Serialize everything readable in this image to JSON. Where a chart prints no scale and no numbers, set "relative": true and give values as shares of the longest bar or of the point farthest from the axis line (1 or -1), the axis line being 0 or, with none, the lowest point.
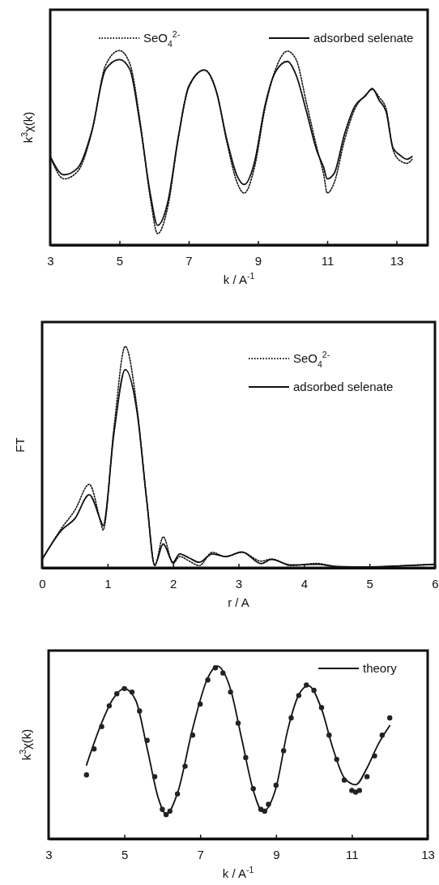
{
  "chart_data": [
    {
      "type": "line",
      "relative": true,
      "xlabel": "k / A$^{-1}$",
      "ylabel": "k$^{3}$χ(k)",
      "xlim": [
        3,
        13.9
      ],
      "xticks": [
        3,
        5,
        7,
        9,
        11,
        13
      ],
      "legend": "top",
      "marker": "none",
      "grid": false,
      "series": [
        {
          "name": "SeO$_{4}$$^{2-}$",
          "color": "#111111",
          "line_style": "dotted",
          "x": [
            3.0,
            3.4,
            3.8,
            4.2,
            4.6,
            5.0,
            5.3,
            5.6,
            5.9,
            6.1,
            6.4,
            6.7,
            7.0,
            7.45,
            7.8,
            8.1,
            8.4,
            8.6,
            8.9,
            9.2,
            9.5,
            9.85,
            10.1,
            10.4,
            10.7,
            10.9,
            11.0,
            11.2,
            11.5,
            11.8,
            12.1,
            12.3,
            12.5,
            12.7,
            12.9,
            13.1,
            13.3,
            13.45
          ],
          "values": [
            0.455,
            0.34,
            0.38,
            0.58,
            0.925,
            1.0,
            0.932,
            0.63,
            0.23,
            0.058,
            0.2,
            0.55,
            0.81,
            0.9,
            0.79,
            0.53,
            0.32,
            0.267,
            0.4,
            0.7,
            0.9,
            0.997,
            0.954,
            0.73,
            0.5,
            0.36,
            0.267,
            0.32,
            0.54,
            0.7,
            0.77,
            0.8,
            0.76,
            0.7,
            0.49,
            0.434,
            0.42,
            0.44
          ]
        },
        {
          "name": "adsorbed selenate",
          "color": "#111111",
          "line_style": "solid",
          "x": [
            3.0,
            3.4,
            3.8,
            4.2,
            4.6,
            5.0,
            5.3,
            5.6,
            5.9,
            6.1,
            6.4,
            6.7,
            7.0,
            7.45,
            7.8,
            8.1,
            8.4,
            8.6,
            8.9,
            9.2,
            9.5,
            9.85,
            10.1,
            10.4,
            10.7,
            10.9,
            11.0,
            11.2,
            11.5,
            11.8,
            12.1,
            12.3,
            12.5,
            12.7,
            12.9,
            13.1,
            13.3,
            13.45
          ],
          "values": [
            0.455,
            0.361,
            0.397,
            0.585,
            0.903,
            0.954,
            0.903,
            0.614,
            0.253,
            0.101,
            0.224,
            0.556,
            0.816,
            0.9,
            0.788,
            0.542,
            0.354,
            0.311,
            0.426,
            0.715,
            0.889,
            0.944,
            0.874,
            0.686,
            0.484,
            0.397,
            0.34,
            0.368,
            0.571,
            0.715,
            0.766,
            0.805,
            0.744,
            0.686,
            0.499,
            0.462,
            0.441,
            0.455
          ]
        }
      ]
    },
    {
      "type": "line",
      "relative": true,
      "xlabel": "r / A",
      "ylabel": "FT",
      "xlim": [
        0,
        6
      ],
      "xticks": [
        0,
        1,
        2,
        3,
        4,
        5,
        6
      ],
      "legend": "top right",
      "marker": "none",
      "grid": false,
      "series": [
        {
          "name": "SeO$_{4}$$^{2-}$",
          "color": "#111111",
          "line_style": "dotted",
          "x": [
            0,
            0.3,
            0.5,
            0.72,
            0.9,
            0.93,
            1.1,
            1.27,
            1.45,
            1.6,
            1.72,
            1.85,
            2.0,
            2.1,
            2.25,
            2.4,
            2.6,
            2.8,
            3.05,
            3.35,
            3.5,
            3.8,
            4.2,
            4.5,
            5.0,
            5.5,
            6.0
          ],
          "values": [
            0.038,
            0.18,
            0.26,
            0.377,
            0.2,
            0.171,
            0.64,
            1.0,
            0.72,
            0.3,
            0.01,
            0.14,
            0.02,
            0.051,
            0.03,
            0.01,
            0.07,
            0.05,
            0.07,
            0.03,
            0.04,
            0.01,
            0.02,
            0.005,
            0.004,
            0.01,
            0.015
          ]
        },
        {
          "name": "adsorbed selenate",
          "color": "#111111",
          "line_style": "solid",
          "x": [
            0,
            0.3,
            0.5,
            0.72,
            0.9,
            0.93,
            1.1,
            1.27,
            1.45,
            1.6,
            1.72,
            1.85,
            2.0,
            2.1,
            2.25,
            2.4,
            2.6,
            2.8,
            3.05,
            3.35,
            3.5,
            3.8,
            4.2,
            4.5,
            5.0,
            5.5,
            6.0
          ],
          "values": [
            0.038,
            0.171,
            0.222,
            0.33,
            0.209,
            0.19,
            0.615,
            0.895,
            0.704,
            0.298,
            0.013,
            0.108,
            0.025,
            0.063,
            0.044,
            0.025,
            0.063,
            0.051,
            0.072,
            0.019,
            0.038,
            0.013,
            0.016,
            0.006,
            0.004,
            0.009,
            0.016
          ]
        }
      ]
    },
    {
      "type": "line",
      "relative": true,
      "xlabel": "k / A$^{-1}$",
      "ylabel": "k$^{3}$χ(k)",
      "xlim": [
        3,
        13
      ],
      "xticks": [
        3,
        5,
        7,
        9,
        11,
        13
      ],
      "legend": "top right",
      "grid": false,
      "series": [
        {
          "type": "scatter",
          "marker": "circle",
          "color": "#222222",
          "x": [
            4.0,
            4.2,
            4.4,
            4.6,
            4.8,
            5.0,
            5.2,
            5.4,
            5.6,
            5.8,
            6.0,
            6.1,
            6.2,
            6.4,
            6.6,
            6.8,
            7.0,
            7.2,
            7.4,
            7.6,
            7.8,
            8.0,
            8.2,
            8.4,
            8.6,
            8.7,
            8.8,
            9.0,
            9.2,
            9.4,
            9.6,
            9.8,
            10.0,
            10.2,
            10.4,
            10.6,
            10.8,
            11.0,
            11.1,
            11.2,
            11.4,
            11.6,
            11.8,
            12.0
          ],
          "values": [
            0.37,
            0.52,
            0.65,
            0.77,
            0.84,
            0.87,
            0.85,
            0.74,
            0.57,
            0.36,
            0.17,
            0.14,
            0.16,
            0.26,
            0.42,
            0.6,
            0.78,
            0.92,
            0.99,
            0.96,
            0.85,
            0.67,
            0.47,
            0.29,
            0.17,
            0.16,
            0.2,
            0.31,
            0.51,
            0.7,
            0.83,
            0.89,
            0.86,
            0.76,
            0.6,
            0.46,
            0.34,
            0.28,
            0.27,
            0.28,
            0.36,
            0.48,
            0.6,
            0.7
          ]
        },
        {
          "name": "theory",
          "type": "line",
          "marker": "none",
          "color": "#111111",
          "line_style": "solid",
          "x": [
            4.0,
            4.4,
            4.7,
            5.0,
            5.3,
            5.6,
            5.9,
            6.1,
            6.4,
            6.8,
            7.2,
            7.45,
            7.8,
            8.1,
            8.4,
            8.65,
            9.0,
            9.3,
            9.6,
            9.85,
            10.2,
            10.5,
            10.8,
            11.1,
            11.4,
            11.7,
            12.0
          ],
          "values": [
            0.427,
            0.671,
            0.81,
            0.87,
            0.801,
            0.524,
            0.231,
            0.142,
            0.264,
            0.638,
            0.932,
            1.0,
            0.866,
            0.573,
            0.28,
            0.158,
            0.296,
            0.622,
            0.834,
            0.886,
            0.752,
            0.524,
            0.353,
            0.313,
            0.41,
            0.549,
            0.655
          ]
        }
      ]
    }
  ]
}
